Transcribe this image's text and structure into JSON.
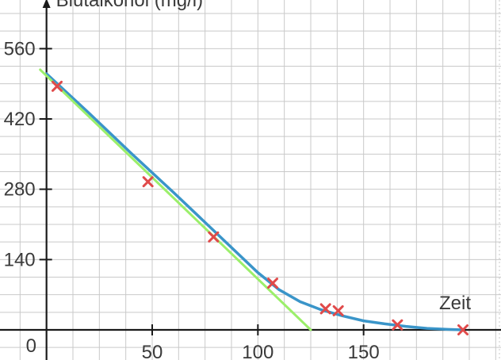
{
  "chart_data": {
    "type": "line",
    "ylabel": "Blutalkohol (mg/l)",
    "xlabel": "Zeit",
    "origin_label": "0",
    "xlim": [
      -22,
      215
    ],
    "ylim": [
      -60,
      660
    ],
    "x_ticks": [
      50,
      100,
      150
    ],
    "y_ticks": [
      140,
      280,
      420,
      560
    ],
    "grid": true,
    "series": [
      {
        "kind": "measurements",
        "color": "#e04a4a",
        "points": [
          [
            5,
            485
          ],
          [
            48,
            295
          ],
          [
            79,
            185
          ],
          [
            107,
            93
          ],
          [
            132,
            42
          ],
          [
            138,
            38
          ],
          [
            166,
            10
          ],
          [
            197,
            0
          ]
        ]
      },
      {
        "kind": "curve",
        "color": "#3a95c9",
        "points": [
          [
            0,
            510
          ],
          [
            20,
            432
          ],
          [
            40,
            352
          ],
          [
            60,
            274
          ],
          [
            80,
            194
          ],
          [
            100,
            114
          ],
          [
            110,
            80
          ],
          [
            120,
            56
          ],
          [
            130,
            40
          ],
          [
            140,
            28
          ],
          [
            150,
            18
          ],
          [
            160,
            12
          ],
          [
            170,
            7
          ],
          [
            180,
            3
          ],
          [
            190,
            1
          ],
          [
            197,
            0
          ]
        ]
      },
      {
        "kind": "fit-line",
        "color": "#9bef6a",
        "points": [
          [
            -3,
            518
          ],
          [
            125,
            0
          ]
        ]
      }
    ]
  }
}
